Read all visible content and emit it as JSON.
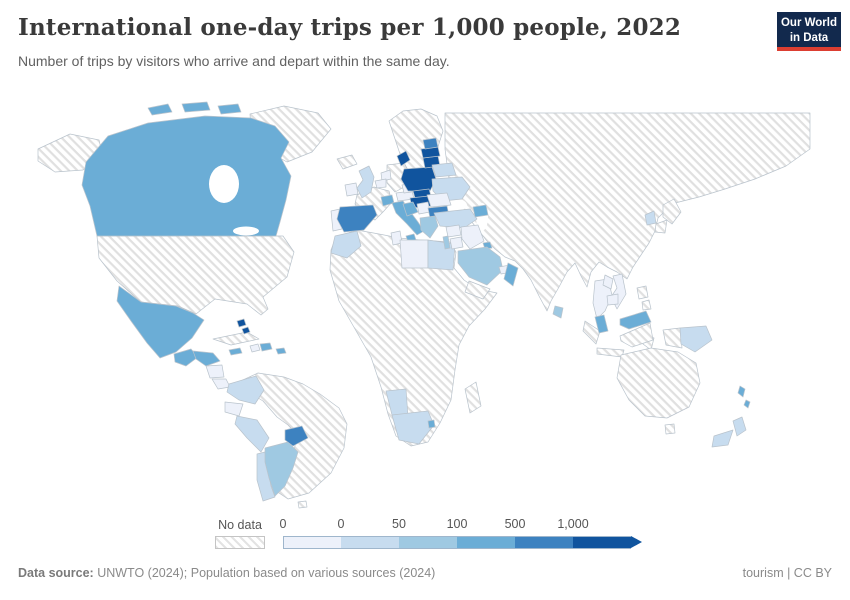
{
  "header": {
    "title": "International one-day trips per 1,000 people, 2022",
    "subtitle": "Number of trips by visitors who arrive and depart within the same day.",
    "logo": {
      "line1": "Our World",
      "line2": "in Data",
      "bg_color": "#12294d",
      "accent_color": "#dc3e31"
    }
  },
  "footer": {
    "source_label": "Data source:",
    "source_text": " UNWTO (2024); Population based on various sources (2024)",
    "license_text": "tourism | CC BY"
  },
  "chart_data": {
    "type": "choropleth",
    "title": "International one-day trips per 1,000 people, 2022",
    "subtitle": "Number of trips by visitors who arrive and depart within the same day.",
    "unit": "trips per 1,000 people",
    "year": "2022",
    "legend": {
      "no_data_label": "No data",
      "ticks": [
        "0",
        "0",
        "50",
        "100",
        "500",
        "1,000"
      ],
      "bin_labels": [
        "0",
        "0–50",
        "50–100",
        "100–500",
        "500–1,000",
        "1,000+"
      ],
      "colors": [
        "#edf1fa",
        "#c7dcef",
        "#9fc9e2",
        "#6badd6",
        "#3d82c0",
        "#10549e"
      ],
      "position": "bottom"
    },
    "countries": [
      {
        "name": "Canada",
        "bin": 3,
        "bin_label": "100–500"
      },
      {
        "name": "Mexico",
        "bin": 3,
        "bin_label": "100–500"
      },
      {
        "name": "Guatemala",
        "bin": 3,
        "bin_label": "100–500"
      },
      {
        "name": "Honduras",
        "bin": 3,
        "bin_label": "100–500"
      },
      {
        "name": "Nicaragua",
        "bin": 0,
        "bin_label": "0"
      },
      {
        "name": "Costa Rica",
        "bin": 0,
        "bin_label": "0"
      },
      {
        "name": "Panama",
        "bin": 1,
        "bin_label": "0–50"
      },
      {
        "name": "Bahamas",
        "bin": 5,
        "bin_label": "1,000+"
      },
      {
        "name": "Jamaica",
        "bin": 3,
        "bin_label": "100–500"
      },
      {
        "name": "Haiti",
        "bin": 0,
        "bin_label": "0"
      },
      {
        "name": "Dominican Republic",
        "bin": 3,
        "bin_label": "100–500"
      },
      {
        "name": "Puerto Rico",
        "bin": 3,
        "bin_label": "100–500"
      },
      {
        "name": "Colombia",
        "bin": 1,
        "bin_label": "0–50"
      },
      {
        "name": "Ecuador",
        "bin": 0,
        "bin_label": "0"
      },
      {
        "name": "Peru",
        "bin": 1,
        "bin_label": "0–50"
      },
      {
        "name": "Chile",
        "bin": 1,
        "bin_label": "0–50"
      },
      {
        "name": "Argentina",
        "bin": 2,
        "bin_label": "50–100"
      },
      {
        "name": "Paraguay",
        "bin": 4,
        "bin_label": "500–1,000"
      },
      {
        "name": "Ireland",
        "bin": 0,
        "bin_label": "0"
      },
      {
        "name": "United Kingdom",
        "bin": 1,
        "bin_label": "0–50"
      },
      {
        "name": "Portugal",
        "bin": 0,
        "bin_label": "0"
      },
      {
        "name": "Spain",
        "bin": 4,
        "bin_label": "500–1,000"
      },
      {
        "name": "Netherlands",
        "bin": 0,
        "bin_label": "0"
      },
      {
        "name": "Belgium",
        "bin": 0,
        "bin_label": "0"
      },
      {
        "name": "Denmark",
        "bin": 5,
        "bin_label": "1,000+"
      },
      {
        "name": "Switzerland",
        "bin": 3,
        "bin_label": "100–500"
      },
      {
        "name": "Italy",
        "bin": 3,
        "bin_label": "100–500"
      },
      {
        "name": "Austria",
        "bin": 0,
        "bin_label": "0"
      },
      {
        "name": "Czechia",
        "bin": 0,
        "bin_label": "0"
      },
      {
        "name": "Poland",
        "bin": 5,
        "bin_label": "1,000+"
      },
      {
        "name": "Lithuania",
        "bin": 5,
        "bin_label": "1,000+"
      },
      {
        "name": "Latvia",
        "bin": 5,
        "bin_label": "1,000+"
      },
      {
        "name": "Estonia",
        "bin": 4,
        "bin_label": "500–1,000"
      },
      {
        "name": "Belarus",
        "bin": 1,
        "bin_label": "0–50"
      },
      {
        "name": "Ukraine",
        "bin": 1,
        "bin_label": "0–50"
      },
      {
        "name": "Slovakia",
        "bin": 5,
        "bin_label": "1,000+"
      },
      {
        "name": "Hungary",
        "bin": 5,
        "bin_label": "1,000+"
      },
      {
        "name": "Croatia",
        "bin": 3,
        "bin_label": "100–500"
      },
      {
        "name": "Serbia",
        "bin": 0,
        "bin_label": "0"
      },
      {
        "name": "Romania",
        "bin": 0,
        "bin_label": "0"
      },
      {
        "name": "Bulgaria",
        "bin": 4,
        "bin_label": "500–1,000"
      },
      {
        "name": "Greece",
        "bin": 2,
        "bin_label": "50–100"
      },
      {
        "name": "Turkey",
        "bin": 1,
        "bin_label": "0–50"
      },
      {
        "name": "Azerbaijan",
        "bin": 3,
        "bin_label": "100–500"
      },
      {
        "name": "Morocco",
        "bin": 1,
        "bin_label": "0–50"
      },
      {
        "name": "Tunisia",
        "bin": 0,
        "bin_label": "0"
      },
      {
        "name": "Libya",
        "bin": 0,
        "bin_label": "0"
      },
      {
        "name": "Egypt",
        "bin": 1,
        "bin_label": "0–50"
      },
      {
        "name": "Syria",
        "bin": 0,
        "bin_label": "0"
      },
      {
        "name": "Israel",
        "bin": 2,
        "bin_label": "50–100"
      },
      {
        "name": "Jordan",
        "bin": 0,
        "bin_label": "0"
      },
      {
        "name": "Iraq",
        "bin": 0,
        "bin_label": "0"
      },
      {
        "name": "Kuwait",
        "bin": 3,
        "bin_label": "100–500"
      },
      {
        "name": "Saudi Arabia",
        "bin": 2,
        "bin_label": "50–100"
      },
      {
        "name": "United Arab Emirates",
        "bin": 0,
        "bin_label": "0"
      },
      {
        "name": "Oman",
        "bin": 3,
        "bin_label": "100–500"
      },
      {
        "name": "South Korea",
        "bin": 1,
        "bin_label": "0–50"
      },
      {
        "name": "Sri Lanka",
        "bin": 2,
        "bin_label": "50–100"
      },
      {
        "name": "Thailand",
        "bin": 0,
        "bin_label": "0"
      },
      {
        "name": "Vietnam",
        "bin": 0,
        "bin_label": "0"
      },
      {
        "name": "Laos",
        "bin": 0,
        "bin_label": "0"
      },
      {
        "name": "Cambodia",
        "bin": 0,
        "bin_label": "0"
      },
      {
        "name": "Malaysia",
        "bin": 3,
        "bin_label": "100–500"
      },
      {
        "name": "Papua New Guinea",
        "bin": 1,
        "bin_label": "0–50"
      },
      {
        "name": "Vanuatu",
        "bin": 3,
        "bin_label": "100–500"
      },
      {
        "name": "New Zealand",
        "bin": 1,
        "bin_label": "0–50"
      },
      {
        "name": "Namibia",
        "bin": 1,
        "bin_label": "0–50"
      },
      {
        "name": "South Africa",
        "bin": 1,
        "bin_label": "0–50"
      },
      {
        "name": "Eswatini",
        "bin": 3,
        "bin_label": "100–500"
      }
    ],
    "no_data_regions": [
      "United States",
      "Greenland",
      "Brazil",
      "Russia",
      "China",
      "India",
      "Australia",
      "most of Africa",
      "France",
      "Germany",
      "Scandinavia",
      "Japan",
      "Indonesia"
    ]
  }
}
